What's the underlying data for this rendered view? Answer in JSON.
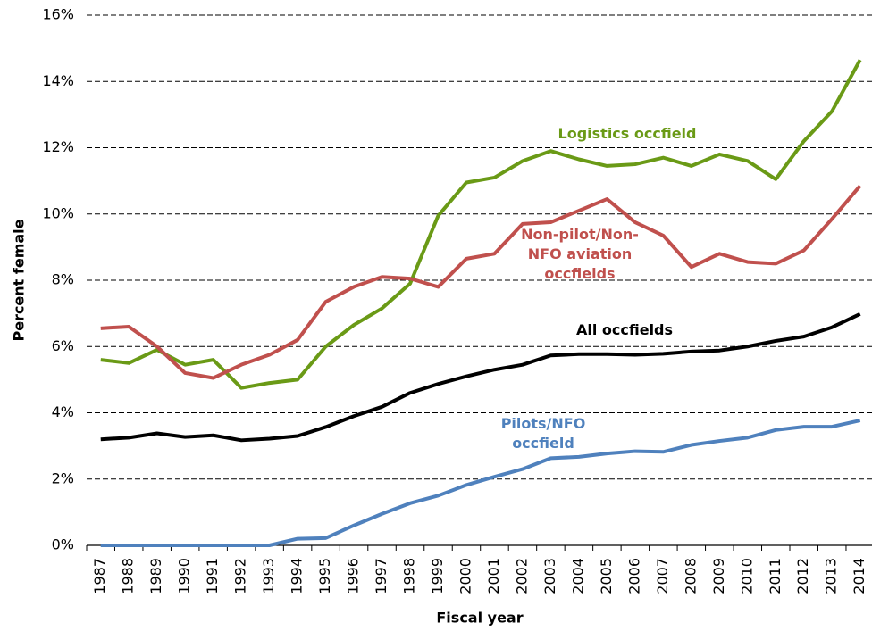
{
  "chart_data": {
    "type": "line",
    "x_label": "Fiscal year",
    "y_label": "Percent female",
    "categories": [
      "1987",
      "1988",
      "1989",
      "1990",
      "1991",
      "1992",
      "1993",
      "1994",
      "1995",
      "1996",
      "1997",
      "1998",
      "1999",
      "2000",
      "2001",
      "2002",
      "2003",
      "2004",
      "2005",
      "2006",
      "2007",
      "2008",
      "2009",
      "2010",
      "2011",
      "2012",
      "2013",
      "2014"
    ],
    "ylim": [
      0,
      16
    ],
    "yticks": [
      {
        "value": 0,
        "label": "0%"
      },
      {
        "value": 2,
        "label": "2%"
      },
      {
        "value": 4,
        "label": "4%"
      },
      {
        "value": 6,
        "label": "6%"
      },
      {
        "value": 8,
        "label": "8%"
      },
      {
        "value": 10,
        "label": "10%"
      },
      {
        "value": 12,
        "label": "12%"
      },
      {
        "value": 14,
        "label": "14%"
      },
      {
        "value": 16,
        "label": "16%"
      }
    ],
    "grid": true,
    "series": [
      {
        "name": "Logistics occfield",
        "color": "#6a9a16",
        "values": [
          5.6,
          5.5,
          5.9,
          5.45,
          5.6,
          4.75,
          4.9,
          5.0,
          6.0,
          6.65,
          7.15,
          7.9,
          9.95,
          10.95,
          11.1,
          11.6,
          11.9,
          11.65,
          11.45,
          11.5,
          11.7,
          11.45,
          11.8,
          11.6,
          11.05,
          12.2,
          13.1,
          14.65
        ]
      },
      {
        "name": "Non-pilot/Non-\nNFO aviation\noccfields",
        "color": "#c0504d",
        "values": [
          6.55,
          6.6,
          6.0,
          5.2,
          5.05,
          5.45,
          5.75,
          6.2,
          7.35,
          7.8,
          8.1,
          8.05,
          7.8,
          8.65,
          8.8,
          9.7,
          9.75,
          10.1,
          10.45,
          9.75,
          9.35,
          8.4,
          8.8,
          8.55,
          8.5,
          8.9,
          9.85,
          10.85
        ]
      },
      {
        "name": "All occfields",
        "color": "#000000",
        "values": [
          3.2,
          3.25,
          3.38,
          3.27,
          3.32,
          3.17,
          3.22,
          3.3,
          3.57,
          3.9,
          4.18,
          4.6,
          4.87,
          5.1,
          5.3,
          5.45,
          5.73,
          5.77,
          5.77,
          5.75,
          5.78,
          5.85,
          5.88,
          6.0,
          6.17,
          6.3,
          6.58,
          6.98
        ]
      },
      {
        "name": "Pilots/NFO\noccfield",
        "color": "#4f81bd",
        "values": [
          0,
          0,
          0,
          0,
          0,
          0,
          0,
          0.2,
          0.22,
          0.6,
          0.95,
          1.27,
          1.5,
          1.82,
          2.07,
          2.3,
          2.63,
          2.67,
          2.77,
          2.84,
          2.82,
          3.03,
          3.15,
          3.25,
          3.48,
          3.58,
          3.58,
          3.77
        ]
      }
    ]
  }
}
